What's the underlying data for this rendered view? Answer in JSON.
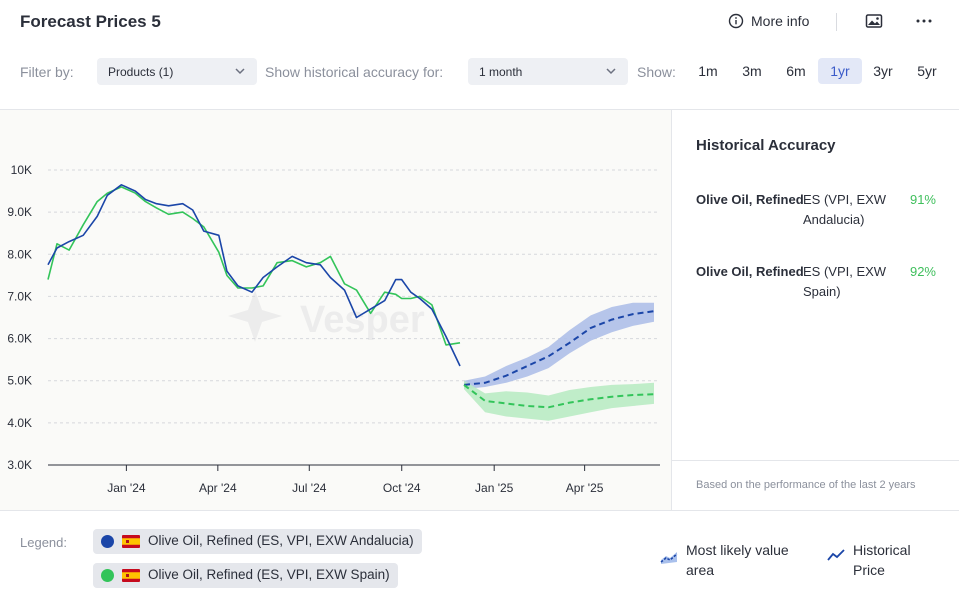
{
  "header": {
    "title": "Forecast Prices 5",
    "more_info": "More info",
    "icons": [
      "info-icon",
      "image-icon",
      "more-icon"
    ]
  },
  "filters": {
    "filter_by_label": "Filter by:",
    "products_value": "Products (1)",
    "accuracy_label": "Show historical accuracy for:",
    "accuracy_value": "1 month",
    "show_label": "Show:",
    "ranges": [
      "1m",
      "3m",
      "6m",
      "1yr",
      "3yr",
      "5yr"
    ],
    "active_range": "1yr"
  },
  "side_panel": {
    "title": "Historical Accuracy",
    "rows": [
      {
        "name": "Olive Oil, Refined",
        "sub": "ES (VPI, EXW Andalucia)",
        "pct": "91%"
      },
      {
        "name": "Olive Oil, Refined",
        "sub": "ES (VPI, EXW Spain)",
        "pct": "92%"
      }
    ],
    "note": "Based on the performance of the last 2 years"
  },
  "legend": {
    "label": "Legend:",
    "series": [
      {
        "name": "Olive Oil, Refined (ES, VPI, EXW Andalucia)",
        "color": "#1b46a8"
      },
      {
        "name": "Olive Oil, Refined (ES, VPI, EXW Spain)",
        "color": "#33c45a"
      }
    ],
    "most_likely": "Most likely value area",
    "historical": "Historical Price"
  },
  "chart_data": {
    "type": "line",
    "x_tick_labels": [
      "Jan '24",
      "Apr '24",
      "Jul '24",
      "Oct '24",
      "Jan '25",
      "Apr '25"
    ],
    "y_tick_labels": [
      "3.0K",
      "4.0K",
      "5.0K",
      "6.0K",
      "7.0K",
      "8.0K",
      "9.0K",
      "10K"
    ],
    "ylim": [
      3000,
      10000
    ],
    "xlim": [
      "2023-10-15",
      "2025-06-15"
    ],
    "grid": true,
    "watermark": "Vesper",
    "series": [
      {
        "name": "Olive Oil, Refined (ES, VPI, EXW Andalucia)",
        "color": "#1b46a8",
        "historical": {
          "x": [
            "2023-10-15",
            "2023-10-24",
            "2023-11-05",
            "2023-11-19",
            "2023-12-03",
            "2023-12-13",
            "2023-12-27",
            "2024-01-10",
            "2024-01-20",
            "2024-01-31",
            "2024-02-12",
            "2024-02-26",
            "2024-03-07",
            "2024-03-18",
            "2024-04-02",
            "2024-04-10",
            "2024-04-21",
            "2024-05-05",
            "2024-05-16",
            "2024-05-30",
            "2024-06-14",
            "2024-06-28",
            "2024-07-12",
            "2024-07-22",
            "2024-08-05",
            "2024-08-17",
            "2024-08-31",
            "2024-09-14",
            "2024-09-25",
            "2024-10-01",
            "2024-10-10",
            "2024-10-19",
            "2024-10-31",
            "2024-11-14",
            "2024-11-28"
          ],
          "y": [
            7750,
            8150,
            8300,
            8450,
            8900,
            9400,
            9650,
            9500,
            9300,
            9200,
            9150,
            9200,
            9050,
            8550,
            8450,
            7600,
            7250,
            7100,
            7450,
            7700,
            7950,
            7800,
            7750,
            7450,
            7150,
            6500,
            6700,
            6900,
            7400,
            7400,
            7100,
            6950,
            6700,
            6050,
            5350
          ]
        },
        "forecast": {
          "x": [
            "2024-12-02",
            "2024-12-23",
            "2025-01-13",
            "2025-02-03",
            "2025-02-24",
            "2025-03-17",
            "2025-04-07",
            "2025-04-28",
            "2025-05-19",
            "2025-06-09"
          ],
          "y": [
            4900,
            4950,
            5120,
            5350,
            5580,
            5900,
            6250,
            6450,
            6580,
            6650
          ],
          "upper": [
            5000,
            5100,
            5350,
            5550,
            5800,
            6200,
            6550,
            6750,
            6850,
            6850
          ],
          "lower": [
            4800,
            4850,
            4950,
            5100,
            5300,
            5650,
            5950,
            6150,
            6300,
            6400
          ]
        }
      },
      {
        "name": "Olive Oil, Refined (ES, VPI, EXW Spain)",
        "color": "#33c45a",
        "historical": {
          "x": [
            "2023-10-15",
            "2023-10-24",
            "2023-11-05",
            "2023-11-19",
            "2023-12-03",
            "2023-12-13",
            "2023-12-27",
            "2024-01-10",
            "2024-01-20",
            "2024-01-31",
            "2024-02-12",
            "2024-02-26",
            "2024-03-07",
            "2024-03-18",
            "2024-04-02",
            "2024-04-10",
            "2024-04-21",
            "2024-05-05",
            "2024-05-16",
            "2024-05-30",
            "2024-06-14",
            "2024-06-28",
            "2024-07-12",
            "2024-07-22",
            "2024-08-05",
            "2024-08-17",
            "2024-08-31",
            "2024-09-14",
            "2024-09-25",
            "2024-10-01",
            "2024-10-10",
            "2024-10-19",
            "2024-10-31",
            "2024-11-14",
            "2024-11-28"
          ],
          "y": [
            7400,
            8250,
            8100,
            8700,
            9250,
            9450,
            9600,
            9450,
            9250,
            9100,
            8950,
            9000,
            8850,
            8650,
            8050,
            7500,
            7200,
            7200,
            7250,
            7800,
            7850,
            7700,
            7800,
            7950,
            7300,
            7150,
            6600,
            7100,
            7050,
            6950,
            6950,
            7000,
            6800,
            5850,
            5900
          ]
        },
        "forecast": {
          "x": [
            "2024-12-02",
            "2024-12-23",
            "2025-01-13",
            "2025-02-03",
            "2025-02-24",
            "2025-03-17",
            "2025-04-07",
            "2025-04-28",
            "2025-05-19",
            "2025-06-09"
          ],
          "y": [
            4900,
            4520,
            4460,
            4400,
            4370,
            4480,
            4560,
            4620,
            4660,
            4680
          ],
          "upper": [
            5000,
            4700,
            4750,
            4720,
            4650,
            4780,
            4850,
            4900,
            4920,
            4950
          ],
          "lower": [
            4800,
            4250,
            4150,
            4100,
            4050,
            4150,
            4250,
            4350,
            4400,
            4450
          ]
        }
      }
    ]
  }
}
